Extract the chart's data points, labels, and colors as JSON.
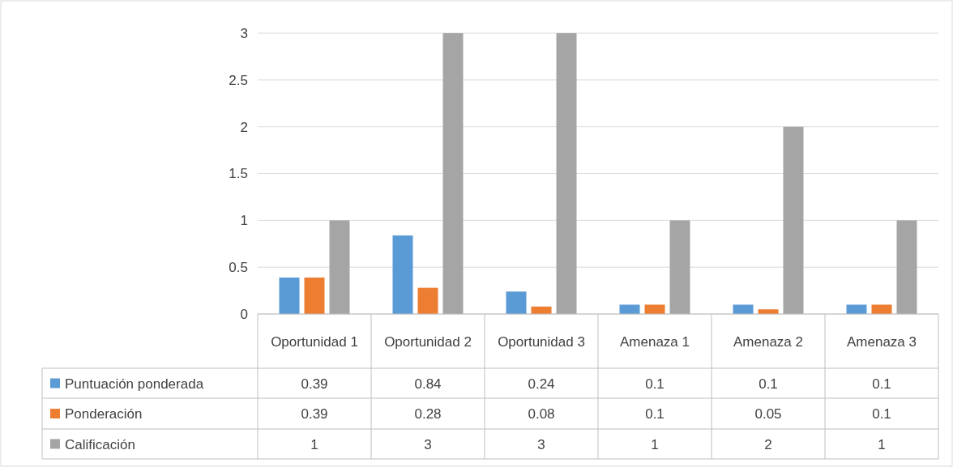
{
  "chart_data": {
    "type": "bar",
    "categories": [
      "Oportunidad 1",
      "Oportunidad 2",
      "Oportunidad 3",
      "Amenaza 1",
      "Amenaza 2",
      "Amenaza 3"
    ],
    "series": [
      {
        "name": "Puntuación ponderada",
        "color": "#5b9bd5",
        "values": [
          0.39,
          0.84,
          0.24,
          0.1,
          0.1,
          0.1
        ]
      },
      {
        "name": "Ponderación",
        "color": "#ed7d31",
        "values": [
          0.39,
          0.28,
          0.08,
          0.1,
          0.05,
          0.1
        ]
      },
      {
        "name": "Calificación",
        "color": "#a5a5a5",
        "values": [
          1,
          3,
          3,
          1,
          2,
          1
        ]
      }
    ],
    "ylim": [
      0,
      3
    ],
    "yticks": [
      0,
      0.5,
      1,
      1.5,
      2,
      2.5,
      3
    ],
    "grid": "y",
    "legend": "bottom",
    "data_labels": true
  }
}
